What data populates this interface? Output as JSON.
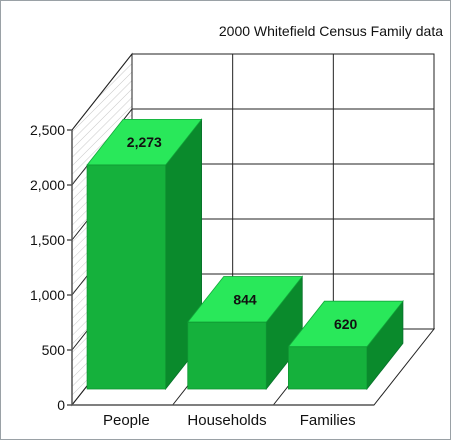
{
  "chart_data": {
    "type": "bar",
    "title": "2000 Whitefield Census Family data",
    "categories": [
      "People",
      "Households",
      "Families"
    ],
    "values": [
      2273,
      844,
      620
    ],
    "data_labels": [
      "2,273",
      "844",
      "620"
    ],
    "xlabel": "",
    "ylabel": "",
    "ylim": [
      0,
      2500
    ],
    "yticks": [
      0,
      500,
      1000,
      1500,
      2000,
      2500
    ],
    "ytick_labels": [
      "0",
      "500",
      "1,000",
      "1,500",
      "2,000",
      "2,500"
    ],
    "grid": true,
    "style": "3d",
    "colors": {
      "bar_front": "#15b13c",
      "bar_top": "#29e85a",
      "bar_side": "#0a8a2c",
      "gridline": "#222222",
      "wall_hatch": "#b8b8b8",
      "axis": "#555555"
    }
  }
}
